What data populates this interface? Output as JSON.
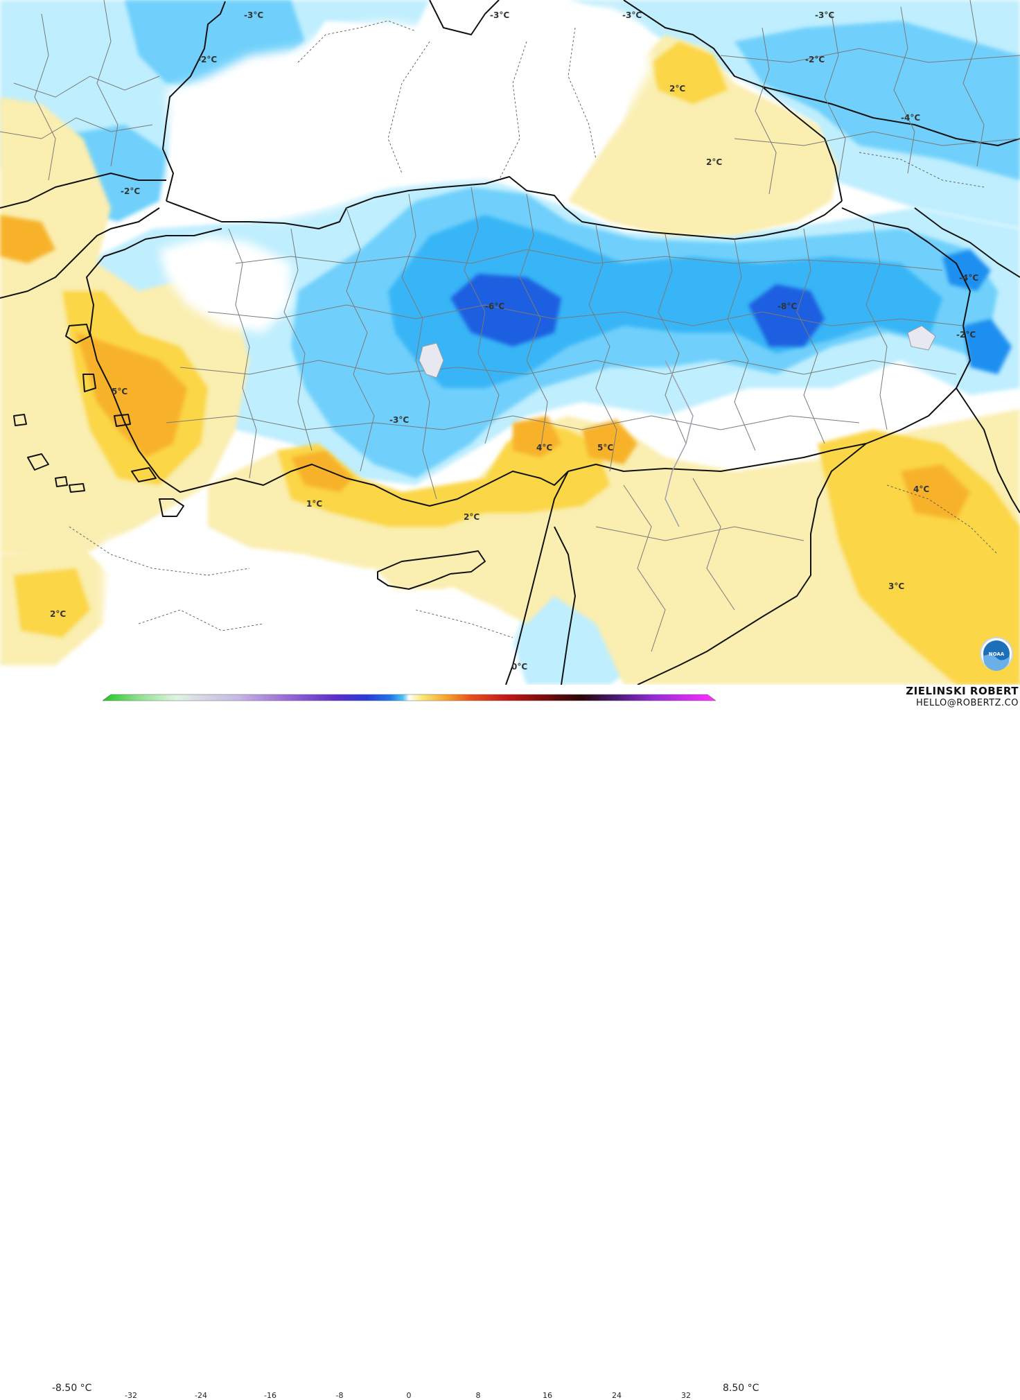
{
  "map": {
    "colors": {
      "sea_white": "#ffffff",
      "cold_light": "#bfeefe",
      "cold_mid": "#6fd0fb",
      "cold": "#39b5f6",
      "cold_strong": "#1a8ff0",
      "cold_deep": "#1f5fe0",
      "warm_light": "#faeeb0",
      "warm": "#fbd646",
      "warm_strong": "#f7b22a",
      "hot": "#f08a2a",
      "border": "#111111",
      "subdivision": "#7a7a7a"
    },
    "labels": [
      {
        "id": "label-black-sea-n",
        "text": "-3°C"
      },
      {
        "id": "label-ukraine-n",
        "text": "-3°C"
      },
      {
        "id": "label-crimea",
        "text": "-3°C"
      },
      {
        "id": "label-russia-ne",
        "text": "-3°C"
      },
      {
        "id": "label-odesa",
        "text": "-2°C"
      },
      {
        "id": "label-caucasus",
        "text": "-2°C"
      },
      {
        "id": "label-east-black-sea-1",
        "text": "2°C"
      },
      {
        "id": "label-east-black-sea-2",
        "text": "2°C"
      },
      {
        "id": "label-russia-east",
        "text": "-4°C"
      },
      {
        "id": "label-balkans",
        "text": "-2°C"
      },
      {
        "id": "label-central-anatolia",
        "text": "-6°C"
      },
      {
        "id": "label-east-anatolia",
        "text": "-8°C"
      },
      {
        "id": "label-armenia",
        "text": "-4°C"
      },
      {
        "id": "label-iran-nw",
        "text": "-2°C"
      },
      {
        "id": "label-aegean",
        "text": "5°C"
      },
      {
        "id": "label-taurus",
        "text": "-3°C"
      },
      {
        "id": "label-adana",
        "text": "4°C"
      },
      {
        "id": "label-gaziantep",
        "text": "5°C"
      },
      {
        "id": "label-antalya",
        "text": "1°C"
      },
      {
        "id": "label-cyprus-n",
        "text": "2°C"
      },
      {
        "id": "label-iraq-n",
        "text": "4°C"
      },
      {
        "id": "label-iraq",
        "text": "3°C"
      },
      {
        "id": "label-libya-sea",
        "text": "2°C"
      },
      {
        "id": "label-levant",
        "text": "0°C"
      }
    ]
  },
  "legend": {
    "min_label": "-8.50 °C",
    "max_label": "8.50 °C",
    "ticks": [
      "-32",
      "-24",
      "-16",
      "-8",
      "0",
      "8",
      "16",
      "24",
      "32"
    ]
  },
  "credit": {
    "name": "ZIELINSKI ROBERT",
    "email": "HELLO@ROBERTZ.CO"
  },
  "logo": {
    "text": "NOAA"
  }
}
